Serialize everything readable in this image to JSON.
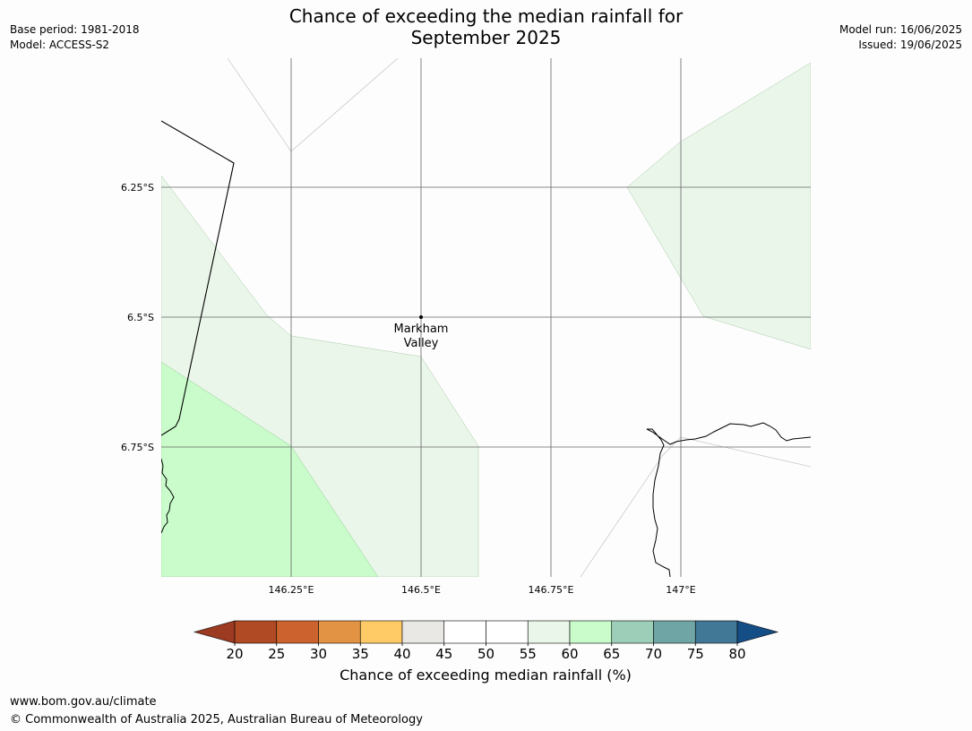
{
  "header": {
    "title_line1": "Chance of exceeding the median rainfall for",
    "title_line2": "September 2025",
    "base_period": "Base period: 1981-2018",
    "model": "Model: ACCESS-S2",
    "model_run": "Model run: 16/06/2025",
    "issued": "Issued: 19/06/2025"
  },
  "map": {
    "latitude_labels": [
      "6.25°S",
      "6.5°S",
      "6.75°S"
    ],
    "longitude_labels": [
      "146.25°E",
      "146.5°E",
      "146.75°E",
      "147°E"
    ],
    "places": [
      {
        "name_line1": "Markham",
        "name_line2": "Valley",
        "lat": "6.5°S",
        "lon": "146.5°E"
      }
    ],
    "shading_categories": [
      {
        "range": "55-60",
        "color": "#eaf6ea"
      },
      {
        "range": "60-65",
        "color": "#c9fcca"
      }
    ],
    "coastline_color": "#000000",
    "gridline_color": "#666666"
  },
  "colorbar": {
    "title": "Chance of exceeding median rainfall (%)",
    "ticks": [
      "20",
      "25",
      "30",
      "35",
      "40",
      "45",
      "50",
      "55",
      "60",
      "65",
      "70",
      "75",
      "80"
    ],
    "extend_low_color": "#9c3a22",
    "extend_high_color": "#154d86",
    "segment_colors": [
      "#b04a24",
      "#cc632f",
      "#e29444",
      "#fecb66",
      "#eae8e5",
      "#ffffff",
      "#ffffff",
      "#eaf6ea",
      "#c9fcca",
      "#9cceb8",
      "#6fa5a5",
      "#417896"
    ]
  },
  "footer": {
    "url": "www.bom.gov.au/climate",
    "copyright": "© Commonwealth of Australia 2025, Australian Bureau of Meteorology"
  }
}
